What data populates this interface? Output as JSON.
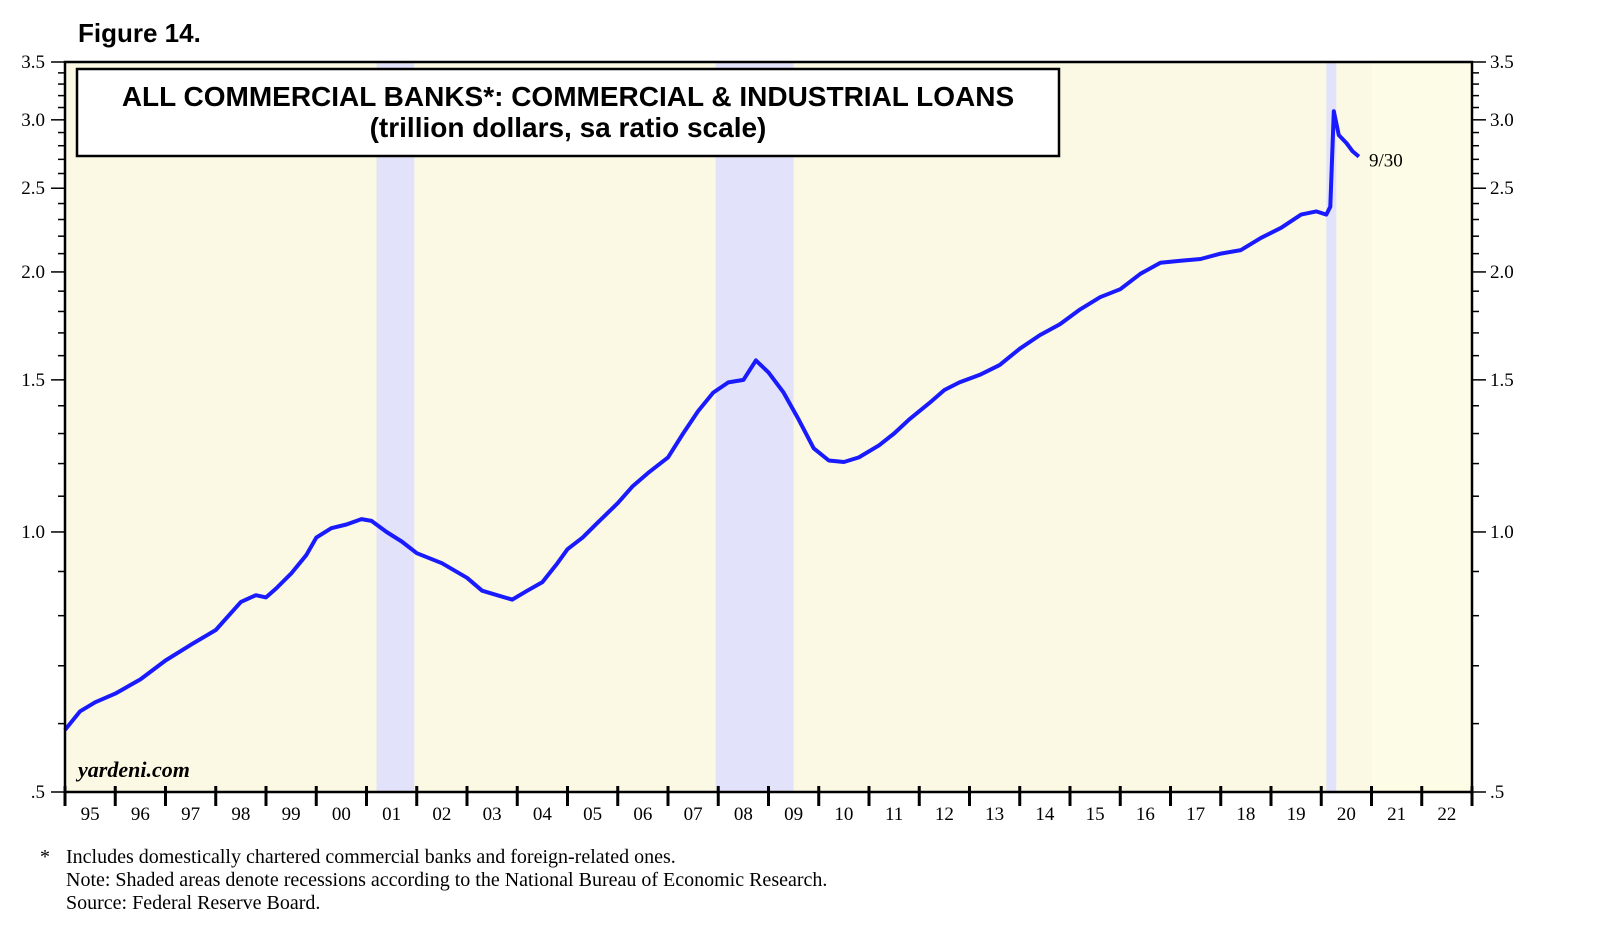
{
  "figure_label": "Figure 14.",
  "chart_data": {
    "type": "line",
    "title": "ALL COMMERCIAL BANKS*: COMMERCIAL & INDUSTRIAL LOANS",
    "subtitle": "(trillion dollars, sa ratio scale)",
    "y_scale": "log",
    "ylim": [
      0.5,
      3.5
    ],
    "y_ticks": [
      {
        "value": 0.5,
        "label": ".5"
      },
      {
        "value": 1.0,
        "label": "1.0"
      },
      {
        "value": 1.5,
        "label": "1.5"
      },
      {
        "value": 2.0,
        "label": "2.0"
      },
      {
        "value": 2.5,
        "label": "2.5"
      },
      {
        "value": 3.0,
        "label": "3.0"
      },
      {
        "value": 3.5,
        "label": "3.5"
      }
    ],
    "xlim": [
      1995,
      2023
    ],
    "x_tick_labels": [
      "95",
      "96",
      "97",
      "98",
      "99",
      "00",
      "01",
      "02",
      "03",
      "04",
      "05",
      "06",
      "07",
      "08",
      "09",
      "10",
      "11",
      "12",
      "13",
      "14",
      "15",
      "16",
      "17",
      "18",
      "19",
      "20",
      "21",
      "22"
    ],
    "recessions": [
      [
        2001.2,
        2001.95
      ],
      [
        2007.95,
        2009.5
      ],
      [
        2020.1,
        2020.3
      ]
    ],
    "forecast_shade": [
      2021.0,
      2023.0
    ],
    "series": [
      {
        "color": "#1a1aff",
        "x": [
          1995.0,
          1995.3,
          1995.6,
          1996.0,
          1996.5,
          1997.0,
          1997.5,
          1998.0,
          1998.5,
          1998.8,
          1999.0,
          1999.2,
          1999.5,
          1999.8,
          2000.0,
          2000.3,
          2000.6,
          2000.9,
          2001.1,
          2001.4,
          2001.7,
          2002.0,
          2002.5,
          2003.0,
          2003.3,
          2003.6,
          2003.9,
          2004.2,
          2004.5,
          2004.8,
          2005.0,
          2005.3,
          2005.6,
          2006.0,
          2006.3,
          2006.6,
          2007.0,
          2007.3,
          2007.6,
          2007.9,
          2008.2,
          2008.5,
          2008.75,
          2009.0,
          2009.3,
          2009.6,
          2009.9,
          2010.2,
          2010.5,
          2010.8,
          2011.2,
          2011.5,
          2011.8,
          2012.2,
          2012.5,
          2012.8,
          2013.2,
          2013.6,
          2014.0,
          2014.4,
          2014.8,
          2015.2,
          2015.6,
          2016.0,
          2016.4,
          2016.8,
          2017.2,
          2017.6,
          2018.0,
          2018.4,
          2018.8,
          2019.2,
          2019.6,
          2019.9,
          2020.0,
          2020.1,
          2020.18,
          2020.25,
          2020.35,
          2020.5,
          2020.62,
          2020.75
        ],
        "y": [
          0.59,
          0.62,
          0.635,
          0.65,
          0.675,
          0.71,
          0.74,
          0.77,
          0.83,
          0.845,
          0.84,
          0.86,
          0.895,
          0.94,
          0.985,
          1.01,
          1.02,
          1.035,
          1.03,
          1.0,
          0.975,
          0.945,
          0.92,
          0.885,
          0.855,
          0.845,
          0.835,
          0.855,
          0.875,
          0.92,
          0.955,
          0.985,
          1.025,
          1.08,
          1.13,
          1.17,
          1.22,
          1.3,
          1.38,
          1.45,
          1.49,
          1.5,
          1.58,
          1.53,
          1.45,
          1.35,
          1.25,
          1.21,
          1.205,
          1.22,
          1.26,
          1.3,
          1.35,
          1.41,
          1.46,
          1.49,
          1.52,
          1.56,
          1.63,
          1.69,
          1.74,
          1.81,
          1.87,
          1.91,
          1.99,
          2.05,
          2.06,
          2.07,
          2.1,
          2.12,
          2.19,
          2.25,
          2.33,
          2.35,
          2.34,
          2.33,
          2.38,
          3.07,
          2.88,
          2.82,
          2.76,
          2.72
        ]
      }
    ],
    "end_label": "9/30",
    "watermark": "yardeni.com"
  },
  "footnotes": {
    "star": "*",
    "line1": "Includes domestically chartered commercial banks and foreign-related ones.",
    "line2": "Note: Shaded areas denote recessions according to the National Bureau of Economic Research.",
    "line3": "Source: Federal Reserve Board."
  },
  "colors": {
    "plot_background": "#fbf9e4",
    "recession_shade": "#e2e3fa",
    "forecast_shade": "#fdfce6",
    "line": "#1a1aff"
  }
}
